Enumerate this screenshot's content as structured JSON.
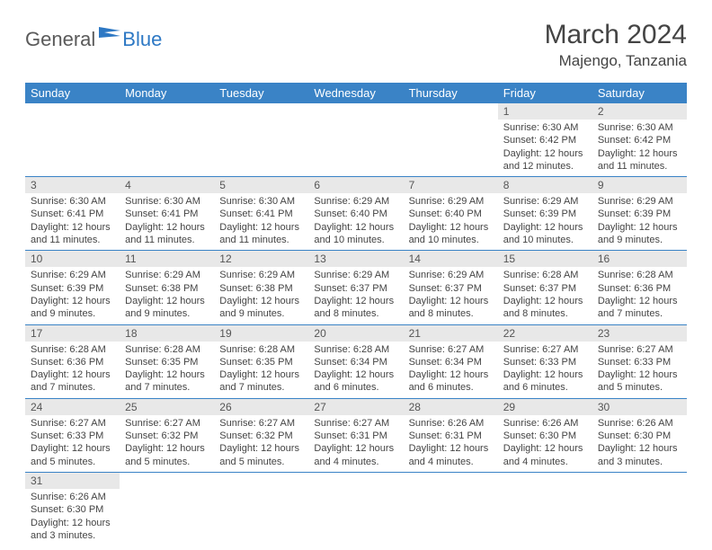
{
  "logo": {
    "general": "General",
    "blue": "Blue"
  },
  "title": "March 2024",
  "location": "Majengo, Tanzania",
  "colors": {
    "header_bg": "#3a83c6",
    "header_text": "#ffffff",
    "daynum_bg": "#e8e8e8",
    "row_border": "#3a83c6",
    "logo_gray": "#5a5a5a",
    "logo_blue": "#2d78c4"
  },
  "weekdays": [
    "Sunday",
    "Monday",
    "Tuesday",
    "Wednesday",
    "Thursday",
    "Friday",
    "Saturday"
  ],
  "weeks": [
    [
      null,
      null,
      null,
      null,
      null,
      {
        "n": "1",
        "sr": "6:30 AM",
        "ss": "6:42 PM",
        "dl": "12 hours and 12 minutes."
      },
      {
        "n": "2",
        "sr": "6:30 AM",
        "ss": "6:42 PM",
        "dl": "12 hours and 11 minutes."
      }
    ],
    [
      {
        "n": "3",
        "sr": "6:30 AM",
        "ss": "6:41 PM",
        "dl": "12 hours and 11 minutes."
      },
      {
        "n": "4",
        "sr": "6:30 AM",
        "ss": "6:41 PM",
        "dl": "12 hours and 11 minutes."
      },
      {
        "n": "5",
        "sr": "6:30 AM",
        "ss": "6:41 PM",
        "dl": "12 hours and 11 minutes."
      },
      {
        "n": "6",
        "sr": "6:29 AM",
        "ss": "6:40 PM",
        "dl": "12 hours and 10 minutes."
      },
      {
        "n": "7",
        "sr": "6:29 AM",
        "ss": "6:40 PM",
        "dl": "12 hours and 10 minutes."
      },
      {
        "n": "8",
        "sr": "6:29 AM",
        "ss": "6:39 PM",
        "dl": "12 hours and 10 minutes."
      },
      {
        "n": "9",
        "sr": "6:29 AM",
        "ss": "6:39 PM",
        "dl": "12 hours and 9 minutes."
      }
    ],
    [
      {
        "n": "10",
        "sr": "6:29 AM",
        "ss": "6:39 PM",
        "dl": "12 hours and 9 minutes."
      },
      {
        "n": "11",
        "sr": "6:29 AM",
        "ss": "6:38 PM",
        "dl": "12 hours and 9 minutes."
      },
      {
        "n": "12",
        "sr": "6:29 AM",
        "ss": "6:38 PM",
        "dl": "12 hours and 9 minutes."
      },
      {
        "n": "13",
        "sr": "6:29 AM",
        "ss": "6:37 PM",
        "dl": "12 hours and 8 minutes."
      },
      {
        "n": "14",
        "sr": "6:29 AM",
        "ss": "6:37 PM",
        "dl": "12 hours and 8 minutes."
      },
      {
        "n": "15",
        "sr": "6:28 AM",
        "ss": "6:37 PM",
        "dl": "12 hours and 8 minutes."
      },
      {
        "n": "16",
        "sr": "6:28 AM",
        "ss": "6:36 PM",
        "dl": "12 hours and 7 minutes."
      }
    ],
    [
      {
        "n": "17",
        "sr": "6:28 AM",
        "ss": "6:36 PM",
        "dl": "12 hours and 7 minutes."
      },
      {
        "n": "18",
        "sr": "6:28 AM",
        "ss": "6:35 PM",
        "dl": "12 hours and 7 minutes."
      },
      {
        "n": "19",
        "sr": "6:28 AM",
        "ss": "6:35 PM",
        "dl": "12 hours and 7 minutes."
      },
      {
        "n": "20",
        "sr": "6:28 AM",
        "ss": "6:34 PM",
        "dl": "12 hours and 6 minutes."
      },
      {
        "n": "21",
        "sr": "6:27 AM",
        "ss": "6:34 PM",
        "dl": "12 hours and 6 minutes."
      },
      {
        "n": "22",
        "sr": "6:27 AM",
        "ss": "6:33 PM",
        "dl": "12 hours and 6 minutes."
      },
      {
        "n": "23",
        "sr": "6:27 AM",
        "ss": "6:33 PM",
        "dl": "12 hours and 5 minutes."
      }
    ],
    [
      {
        "n": "24",
        "sr": "6:27 AM",
        "ss": "6:33 PM",
        "dl": "12 hours and 5 minutes."
      },
      {
        "n": "25",
        "sr": "6:27 AM",
        "ss": "6:32 PM",
        "dl": "12 hours and 5 minutes."
      },
      {
        "n": "26",
        "sr": "6:27 AM",
        "ss": "6:32 PM",
        "dl": "12 hours and 5 minutes."
      },
      {
        "n": "27",
        "sr": "6:27 AM",
        "ss": "6:31 PM",
        "dl": "12 hours and 4 minutes."
      },
      {
        "n": "28",
        "sr": "6:26 AM",
        "ss": "6:31 PM",
        "dl": "12 hours and 4 minutes."
      },
      {
        "n": "29",
        "sr": "6:26 AM",
        "ss": "6:30 PM",
        "dl": "12 hours and 4 minutes."
      },
      {
        "n": "30",
        "sr": "6:26 AM",
        "ss": "6:30 PM",
        "dl": "12 hours and 3 minutes."
      }
    ],
    [
      {
        "n": "31",
        "sr": "6:26 AM",
        "ss": "6:30 PM",
        "dl": "12 hours and 3 minutes."
      },
      null,
      null,
      null,
      null,
      null,
      null
    ]
  ],
  "labels": {
    "sunrise": "Sunrise:",
    "sunset": "Sunset:",
    "daylight": "Daylight:"
  }
}
